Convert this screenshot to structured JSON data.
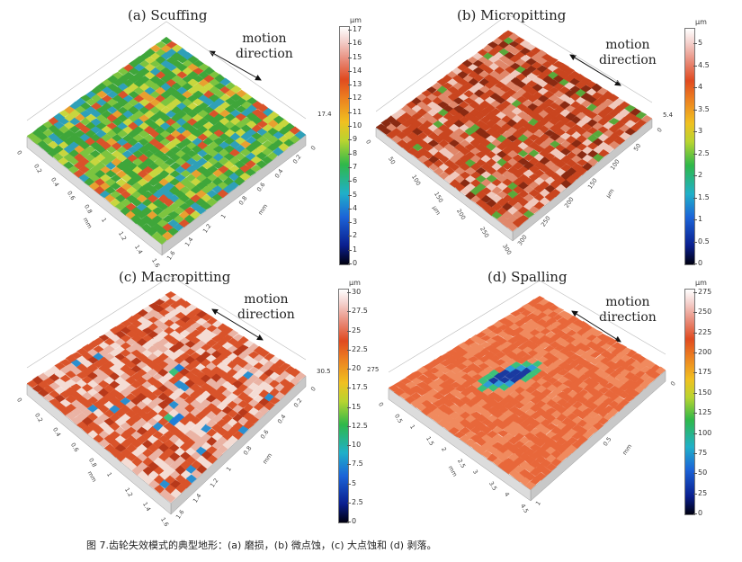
{
  "figure": {
    "caption": "图 7.齿轮失效模式的典型地形：(a)  磨损，(b)  微点蚀，(c)  大点蚀和  (d)  剥落。",
    "motion_label_line1": "motion",
    "motion_label_line2": "direction"
  },
  "panels": [
    {
      "id": "a",
      "title": "(a) Scuffing",
      "unit": "µm",
      "z_max_label": "17.4",
      "colorbar_ticks": [
        "17",
        "16",
        "15",
        "14",
        "13",
        "12",
        "11",
        "10",
        "9",
        "8",
        "7",
        "6",
        "5",
        "4",
        "3",
        "2",
        "1",
        "0"
      ],
      "x_axis_unit": "mm",
      "y_axis_unit": "mm",
      "x_ticks": [
        "0",
        "0.2",
        "0.4",
        "0.6",
        "0.8",
        "1",
        "1.2",
        "1.4",
        "1.6"
      ],
      "y_ticks": [
        "0",
        "0.2",
        "0.4",
        "0.6",
        "0.8",
        "1",
        "1.2",
        "1.4",
        "1.6"
      ],
      "surface_colors": [
        "#3fa63a",
        "#7cc43f",
        "#c8d63e",
        "#2fa0b8",
        "#d9532a",
        "#e8a030"
      ]
    },
    {
      "id": "b",
      "title": "(b) Micropitting",
      "unit": "µm",
      "z_max_label": "5.4",
      "colorbar_ticks": [
        "5",
        "4.5",
        "4",
        "3.5",
        "3",
        "2.5",
        "2",
        "1.5",
        "1",
        "0.5",
        "0"
      ],
      "x_axis_unit": "µm",
      "y_axis_unit": "µm",
      "x_ticks": [
        "0",
        "50",
        "100",
        "150",
        "200",
        "250",
        "300"
      ],
      "y_ticks": [
        "0",
        "50",
        "100",
        "150",
        "200",
        "250",
        "300"
      ],
      "surface_colors": [
        "#c9451f",
        "#e0876a",
        "#f0c8bc",
        "#8a2a12",
        "#5aa83a"
      ]
    },
    {
      "id": "c",
      "title": "(c) Macropitting",
      "unit": "µm",
      "z_max_label": "30.5",
      "colorbar_ticks": [
        "30",
        "27.5",
        "25",
        "22.5",
        "20",
        "17.5",
        "15",
        "12.5",
        "10",
        "7.5",
        "5",
        "2.5",
        "0"
      ],
      "x_axis_unit": "mm",
      "y_axis_unit": "mm",
      "x_ticks": [
        "0",
        "0.2",
        "0.4",
        "0.6",
        "0.8",
        "1",
        "1.2",
        "1.4",
        "1.6"
      ],
      "y_ticks": [
        "0",
        "0.2",
        "0.4",
        "0.6",
        "0.8",
        "1",
        "1.2",
        "1.4",
        "1.6"
      ],
      "surface_colors": [
        "#d9532a",
        "#eab3a4",
        "#f4dcd4",
        "#b8391a",
        "#2a8fd0"
      ]
    },
    {
      "id": "d",
      "title": "(d) Spalling",
      "unit": "µm",
      "z_max_label": "275",
      "colorbar_ticks": [
        "275",
        "250",
        "225",
        "200",
        "175",
        "150",
        "125",
        "100",
        "75",
        "50",
        "25",
        "0"
      ],
      "x_axis_unit": "mm",
      "y_axis_unit": "mm",
      "x_ticks": [
        "0",
        "0.5",
        "1",
        "1.5",
        "2",
        "2.5",
        "3",
        "3.5",
        "4",
        "4.5"
      ],
      "y_ticks": [
        "0",
        "0.5",
        "1"
      ],
      "surface_colors": [
        "#e8673a",
        "#f08a5e",
        "#2f9bd8",
        "#3cc07a",
        "#1a3aa0"
      ]
    }
  ]
}
